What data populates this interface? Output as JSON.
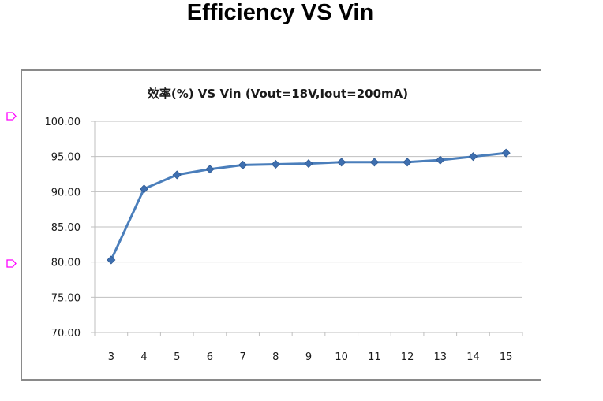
{
  "page": {
    "title": "Efficiency VS Vin"
  },
  "chart_data": {
    "type": "line",
    "title": "效率(%) VS  Vin (Vout=18V,Iout=200mA)",
    "xlabel": "",
    "ylabel": "",
    "categories": [
      "3",
      "4",
      "5",
      "6",
      "7",
      "8",
      "9",
      "10",
      "11",
      "12",
      "13",
      "14",
      "15"
    ],
    "series": [
      {
        "values": [
          80.3,
          90.4,
          92.4,
          93.2,
          93.8,
          93.9,
          94.0,
          94.2,
          94.2,
          94.2,
          94.5,
          95.0,
          95.5
        ]
      }
    ],
    "ylim": [
      70,
      100
    ],
    "yticks": [
      "70.00",
      "75.00",
      "80.00",
      "85.00",
      "90.00",
      "95.00",
      "100.00"
    ],
    "grid": true,
    "legend": "none",
    "colors": {
      "line": "#4a7ebb",
      "marker": "#3e6fb0",
      "grid": "#bfbfbf",
      "frame": "#8a8a8a",
      "edge_marker": "#ff00ff"
    }
  }
}
